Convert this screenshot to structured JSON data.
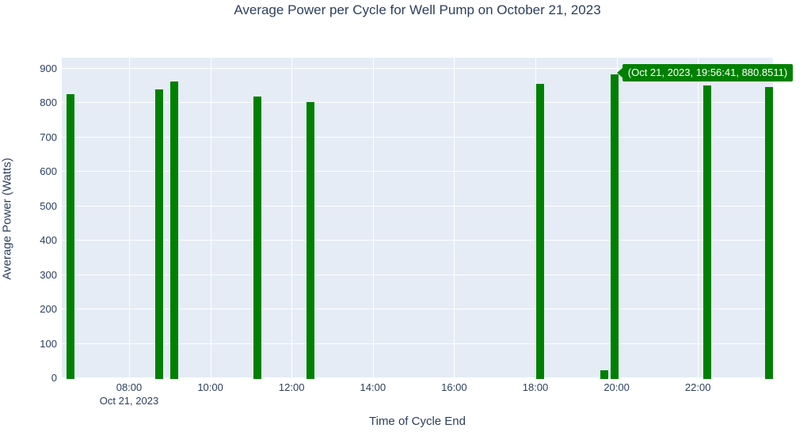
{
  "figure": {
    "title": "Average Power per Cycle for Well Pump on October 21, 2023",
    "background_color": "#ffffff"
  },
  "colors": {
    "bar": "#008000",
    "plot_background": "#e5ecf6",
    "gridline": "#ffffff",
    "text": "#2a3f5f",
    "tooltip_background": "#008000",
    "tooltip_text": "#ffffff"
  },
  "tooltip": {
    "text": "(Oct 21, 2023, 19:56:41, 880.8511)",
    "attached_point_time": "19:56:41",
    "attached_point_value": 880.8511
  },
  "chart_data": {
    "type": "bar",
    "title": "Average Power per Cycle for Well Pump on October 21, 2023",
    "xlabel": "Time of Cycle End",
    "ylabel": "Average Power (Watts)",
    "x_date_label": "Oct 21, 2023",
    "x": [
      "06:34",
      "08:44",
      "09:07",
      "11:09",
      "12:28",
      "18:07",
      "19:42",
      "19:56:41",
      "22:14",
      "23:45"
    ],
    "values": [
      825,
      838,
      860,
      818,
      800,
      854,
      20,
      880.8511,
      850,
      845
    ],
    "xticks": [
      "08:00",
      "10:00",
      "12:00",
      "14:00",
      "16:00",
      "18:00",
      "20:00",
      "22:00"
    ],
    "yticks": [
      0,
      100,
      200,
      300,
      400,
      500,
      600,
      700,
      800,
      900
    ],
    "xlim": [
      "06:20",
      "23:51"
    ],
    "ylim": [
      0,
      930
    ],
    "grid": true,
    "legend": false,
    "annotation": "(Oct 21, 2023, 19:56:41, 880.8511)"
  }
}
